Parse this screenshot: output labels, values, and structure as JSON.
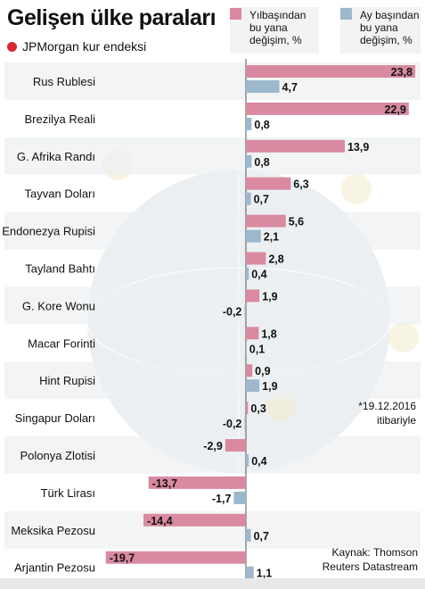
{
  "title": "Gelişen ülke paraları",
  "subtitle": "JPMorgan kur endeksi",
  "footnote": "*19.12.2016\nitibariyle",
  "source": "Kaynak: Thomson\nReuters Datastream",
  "colors": {
    "ytd": "#d98aa0",
    "mtd": "#9db8cc",
    "accent": "#d9272e",
    "row_alt": "#eef0f2"
  },
  "chart_data": {
    "type": "bar",
    "orientation": "horizontal",
    "categories": [
      "Rus Rublesi",
      "Brezilya Reali",
      "G. Afrika Randı",
      "Tayvan Doları",
      "Endonezya Rupisi",
      "Tayland Bahtı",
      "G. Kore Wonu",
      "Macar Forinti",
      "Hint Rupisi",
      "Singapur Doları",
      "Polonya Zlotisi",
      "Türk Lirası",
      "Meksika Pezosu",
      "Arjantin Pezosu"
    ],
    "series": [
      {
        "name": "Yılbaşından\nbu yana\ndeğişim, %",
        "values": [
          23.8,
          22.9,
          13.9,
          6.3,
          5.6,
          2.8,
          1.9,
          1.8,
          0.9,
          0.3,
          -2.9,
          -13.7,
          -14.4,
          -19.7
        ]
      },
      {
        "name": "Ay başından\nbu yana\ndeğişim, %",
        "values": [
          4.7,
          0.8,
          0.8,
          0.7,
          2.1,
          0.4,
          -0.2,
          0.1,
          1.9,
          -0.2,
          0.4,
          -1.7,
          0.7,
          1.1
        ]
      }
    ],
    "value_labels": {
      "ytd": [
        "23,8",
        "22,9",
        "13,9",
        "6,3",
        "5,6",
        "2,8",
        "1,9",
        "1,8",
        "0,9",
        "0,3",
        "-2,9",
        "-13,7",
        "-14,4",
        "-19,7"
      ],
      "mtd": [
        "4,7",
        "0,8",
        "0,8",
        "0,7",
        "2,1",
        "0,4",
        "-0,2",
        "0,1",
        "1,9",
        "-0,2",
        "0,4",
        "-1,7",
        "0,7",
        "1,1"
      ]
    },
    "xlim": [
      -19.7,
      23.8
    ]
  }
}
